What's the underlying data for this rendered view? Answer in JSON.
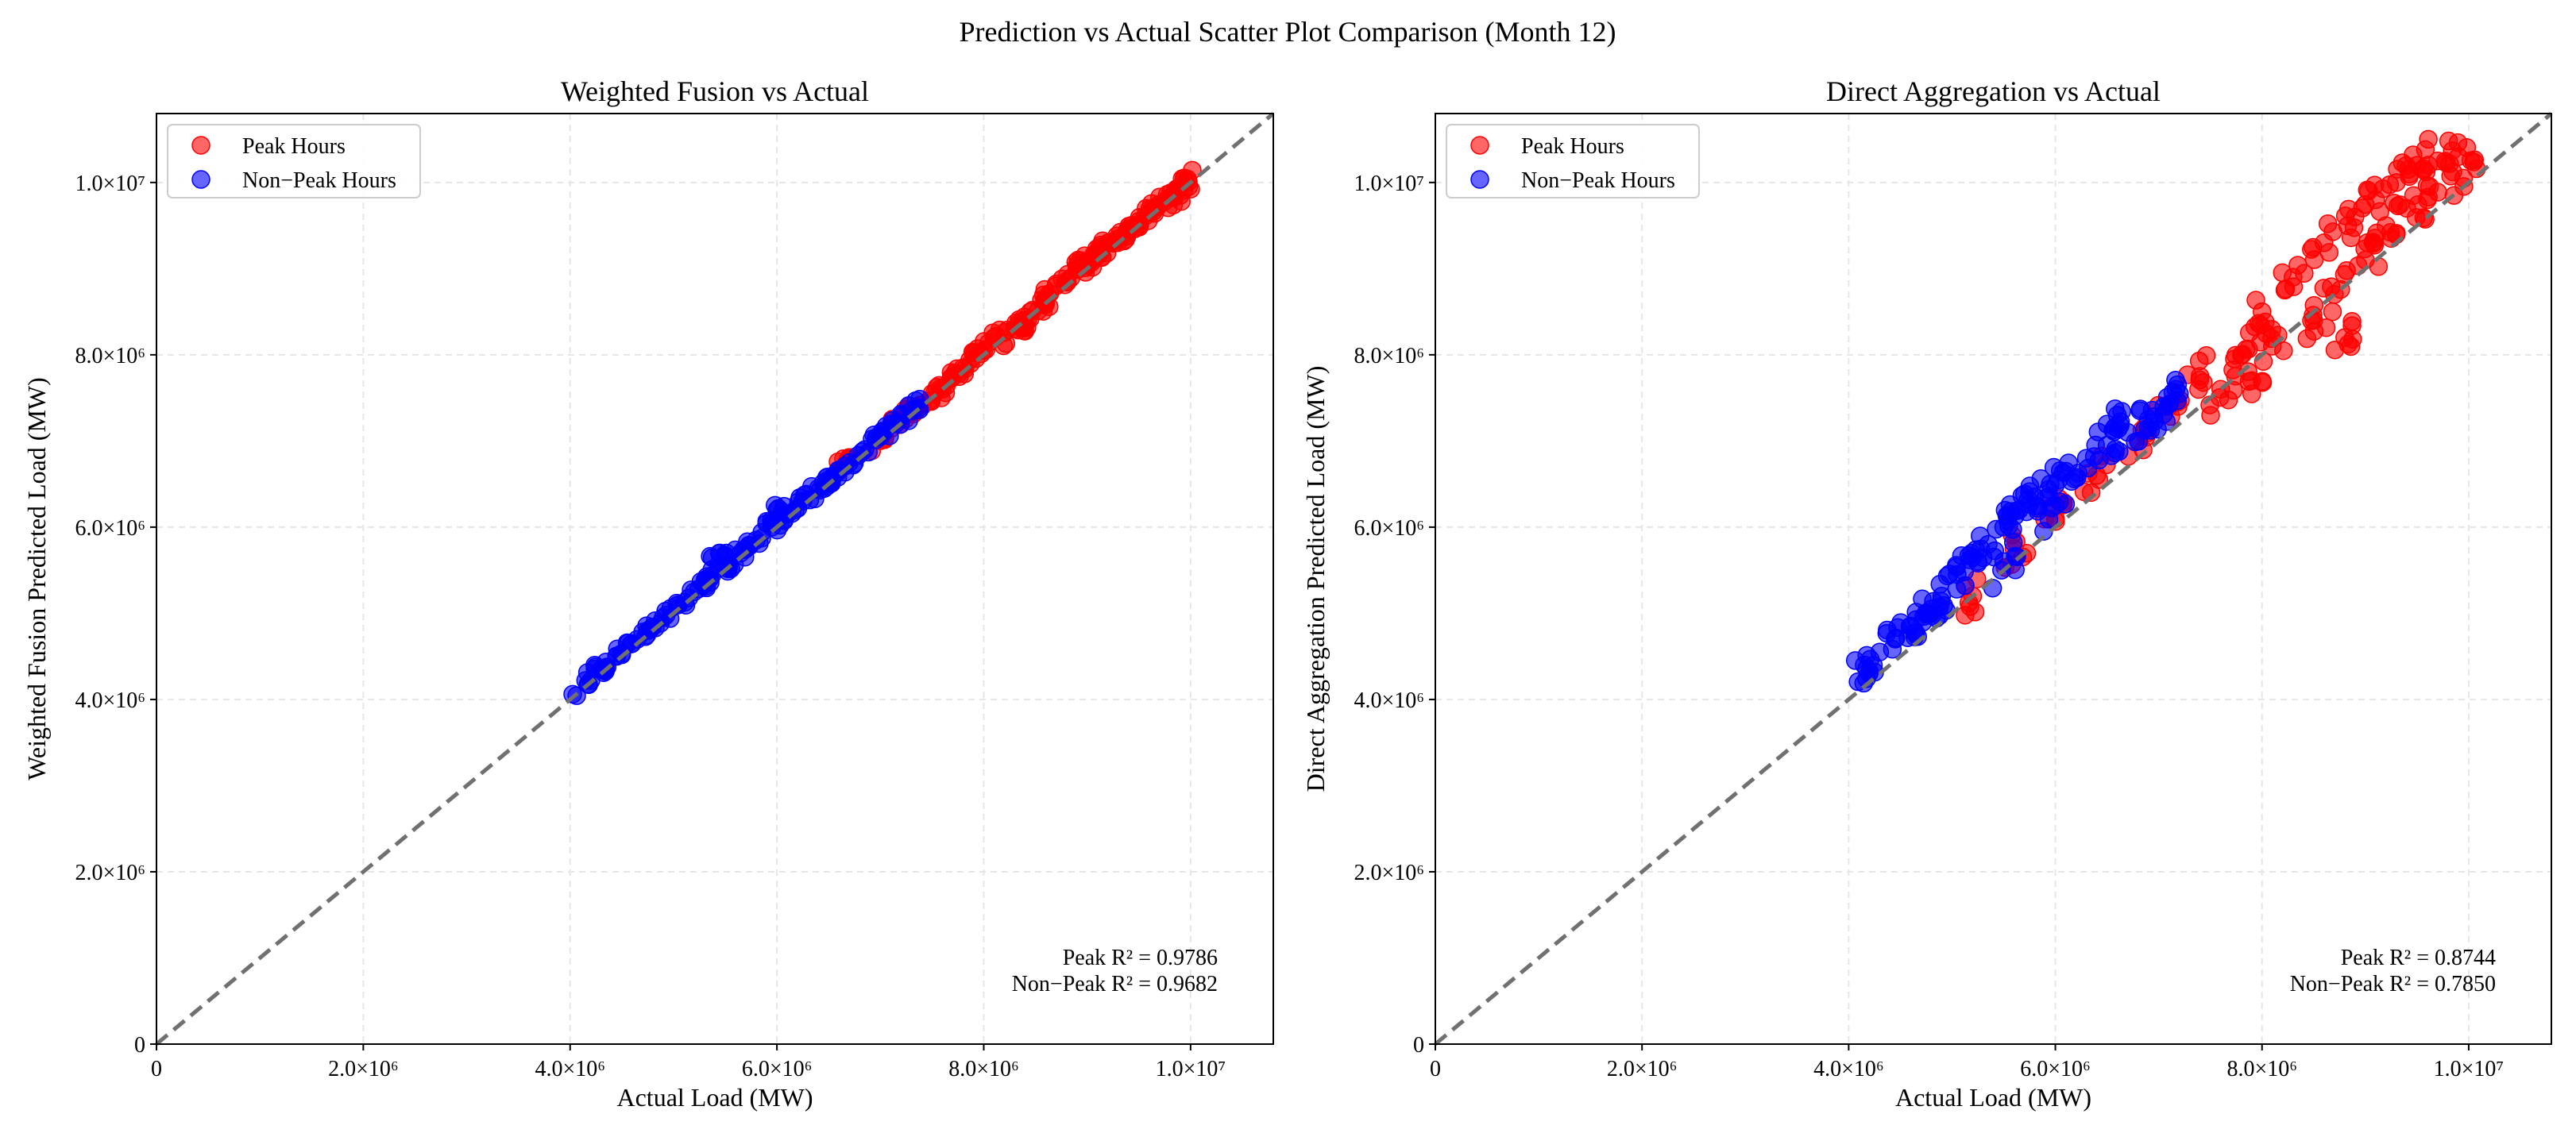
{
  "figure_title": "Prediction vs Actual Scatter Plot Comparison (Month 12)",
  "colors": {
    "peak": "#ff0000",
    "nonpeak": "#0000ff",
    "diagonal": "#707070",
    "grid": "#e6e6e6"
  },
  "chart_data": [
    {
      "type": "scatter",
      "title": "Weighted Fusion vs Actual",
      "xlabel": "Actual Load (MW)",
      "ylabel": "Weighted Fusion Predicted Load (MW)",
      "xlim": [
        0,
        10800000
      ],
      "ylim": [
        0,
        10800000
      ],
      "xticks": [
        0,
        2000000,
        4000000,
        6000000,
        8000000,
        10000000
      ],
      "yticks": [
        0,
        2000000,
        4000000,
        6000000,
        8000000,
        10000000
      ],
      "tick_labels": [
        "0",
        "2.0×10⁶",
        "4.0×10⁶",
        "6.0×10⁶",
        "8.0×10⁶",
        "1.0×10⁷"
      ],
      "legend": [
        "Peak Hours",
        "Non−Peak Hours"
      ],
      "legend_position": "upper-left",
      "grid": true,
      "annotation": [
        "Peak R² = 0.9786",
        "Non−Peak R² = 0.9682"
      ],
      "series": [
        {
          "name": "Peak Hours",
          "points": [
            [
              6700000,
              6800000
            ],
            [
              7000000,
              7050000
            ],
            [
              7200000,
              7250000
            ],
            [
              7350000,
              7400000
            ],
            [
              7500000,
              7550000
            ],
            [
              7700000,
              7750000
            ],
            [
              7800000,
              7850000
            ],
            [
              8000000,
              8050000
            ],
            [
              8100000,
              8200000
            ],
            [
              8300000,
              8300000
            ],
            [
              8450000,
              8500000
            ],
            [
              8600000,
              8600000
            ],
            [
              8700000,
              8800000
            ],
            [
              8800000,
              8850000
            ],
            [
              8900000,
              9000000
            ],
            [
              9000000,
              9050000
            ],
            [
              9100000,
              9150000
            ],
            [
              9200000,
              9300000
            ],
            [
              9300000,
              9350000
            ],
            [
              9400000,
              9450000
            ],
            [
              9500000,
              9550000
            ],
            [
              9600000,
              9650000
            ],
            [
              9700000,
              9750000
            ],
            [
              9850000,
              9900000
            ],
            [
              9950000,
              10000000
            ],
            [
              9900000,
              9850000
            ],
            [
              8400000,
              8350000
            ],
            [
              7600000,
              7600000
            ]
          ]
        },
        {
          "name": "Non−Peak Hours",
          "points": [
            [
              4150000,
              4220000
            ],
            [
              4300000,
              4350000
            ],
            [
              4450000,
              4500000
            ],
            [
              4600000,
              4650000
            ],
            [
              4750000,
              4800000
            ],
            [
              4900000,
              4950000
            ],
            [
              5050000,
              5100000
            ],
            [
              5200000,
              5250000
            ],
            [
              5350000,
              5400000
            ],
            [
              5500000,
              5550000
            ],
            [
              5650000,
              5700000
            ],
            [
              5800000,
              5850000
            ],
            [
              5950000,
              6000000
            ],
            [
              6100000,
              6150000
            ],
            [
              6250000,
              6300000
            ],
            [
              6400000,
              6450000
            ],
            [
              6550000,
              6600000
            ],
            [
              6700000,
              6750000
            ],
            [
              6850000,
              6900000
            ],
            [
              7000000,
              7050000
            ],
            [
              7150000,
              7200000
            ],
            [
              7300000,
              7350000
            ],
            [
              5450000,
              5700000
            ],
            [
              6000000,
              6200000
            ]
          ]
        }
      ]
    },
    {
      "type": "scatter",
      "title": "Direct Aggregation vs Actual",
      "xlabel": "Actual Load (MW)",
      "ylabel": "Direct Aggregation Predicted Load (MW)",
      "xlim": [
        0,
        10800000
      ],
      "ylim": [
        0,
        10800000
      ],
      "xticks": [
        0,
        2000000,
        4000000,
        6000000,
        8000000,
        10000000
      ],
      "yticks": [
        0,
        2000000,
        4000000,
        6000000,
        8000000,
        10000000
      ],
      "tick_labels": [
        "0",
        "2.0×10⁶",
        "4.0×10⁶",
        "6.0×10⁶",
        "8.0×10⁶",
        "1.0×10⁷"
      ],
      "legend": [
        "Peak Hours",
        "Non−Peak Hours"
      ],
      "legend_position": "upper-left",
      "grid": true,
      "annotation": [
        "Peak R² = 0.8744",
        "Non−Peak R² = 0.7850"
      ],
      "series": [
        {
          "name": "Peak Hours",
          "points": [
            [
              5200000,
              5200000
            ],
            [
              5600000,
              5750000
            ],
            [
              6000000,
              6100000
            ],
            [
              6400000,
              6600000
            ],
            [
              6800000,
              7000000
            ],
            [
              7100000,
              7400000
            ],
            [
              7400000,
              7750000
            ],
            [
              7600000,
              7600000
            ],
            [
              7800000,
              8000000
            ],
            [
              8000000,
              8500000
            ],
            [
              8100000,
              8100000
            ],
            [
              8300000,
              8900000
            ],
            [
              8500000,
              8400000
            ],
            [
              8600000,
              9300000
            ],
            [
              8700000,
              8700000
            ],
            [
              8900000,
              9600000
            ],
            [
              9000000,
              9100000
            ],
            [
              9100000,
              9800000
            ],
            [
              9200000,
              9500000
            ],
            [
              9300000,
              10000000
            ],
            [
              9400000,
              9700000
            ],
            [
              9500000,
              10200000
            ],
            [
              9600000,
              9800000
            ],
            [
              9700000,
              10250000
            ],
            [
              9900000,
              10300000
            ],
            [
              9950000,
              10050000
            ],
            [
              8800000,
              8200000
            ],
            [
              7900000,
              7700000
            ]
          ]
        },
        {
          "name": "Non−Peak Hours",
          "points": [
            [
              4150000,
              4400000
            ],
            [
              4300000,
              4550000
            ],
            [
              4450000,
              4700000
            ],
            [
              4600000,
              4850000
            ],
            [
              4750000,
              5000000
            ],
            [
              4900000,
              5200000
            ],
            [
              5050000,
              5450000
            ],
            [
              5200000,
              5650000
            ],
            [
              5350000,
              5800000
            ],
            [
              5500000,
              6000000
            ],
            [
              5650000,
              6200000
            ],
            [
              5800000,
              6350000
            ],
            [
              5950000,
              6500000
            ],
            [
              6100000,
              6650000
            ],
            [
              6300000,
              6800000
            ],
            [
              6500000,
              6950000
            ],
            [
              6700000,
              7100000
            ],
            [
              6900000,
              7250000
            ],
            [
              7050000,
              7400000
            ],
            [
              7200000,
              7550000
            ],
            [
              5500000,
              5600000
            ],
            [
              6000000,
              6250000
            ],
            [
              6600000,
              7300000
            ],
            [
              4800000,
              5050000
            ]
          ]
        }
      ]
    }
  ]
}
